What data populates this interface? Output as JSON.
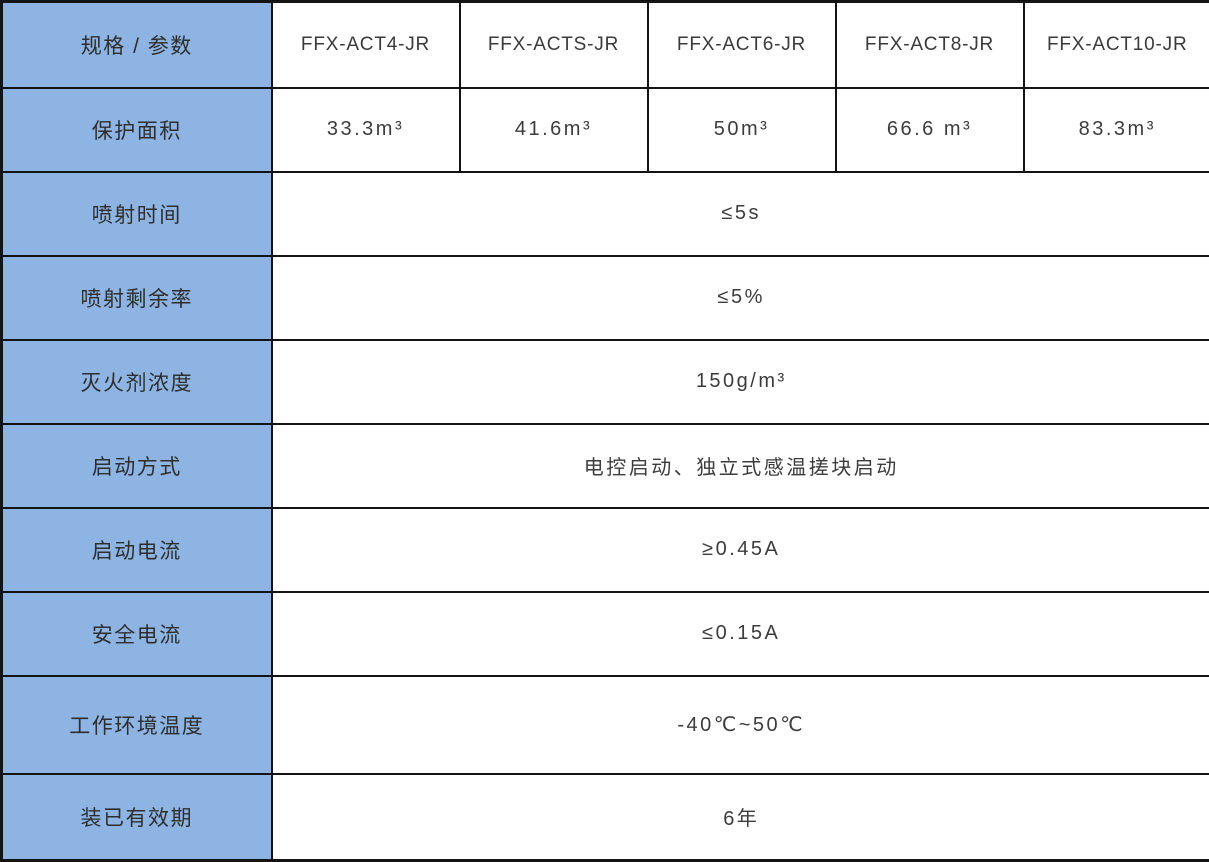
{
  "table": {
    "header": {
      "corner_label": "规格 / 参数",
      "models": [
        "FFX-ACT4-JR",
        "FFX-ACTS-JR",
        "FFX-ACT6-JR",
        "FFX-ACT8-JR",
        "FFX-ACT10-JR"
      ]
    },
    "protection_area_row": {
      "label": "保护面积",
      "values": [
        "33.3m³",
        "41.6m³",
        "50m³",
        "66.6 m³",
        "83.3m³"
      ]
    },
    "spec_rows": [
      {
        "label": "喷射时间",
        "value": "≤5s"
      },
      {
        "label": "喷射剩余率",
        "value": "≤5%"
      },
      {
        "label": "灭火剂浓度",
        "value": "150g/m³"
      },
      {
        "label": "启动方式",
        "value": "电控启动、独立式感温搓块启动"
      },
      {
        "label": "启动电流",
        "value": "≥0.45A"
      },
      {
        "label": "安全电流",
        "value": "≤0.15A"
      },
      {
        "label": "工作环境温度",
        "value": "-40℃~50℃"
      },
      {
        "label": "装已有效期",
        "value": "6年"
      }
    ],
    "colors": {
      "label_background": "#8DB4E2",
      "border": "#141414",
      "text": "#3A3A3A"
    }
  }
}
